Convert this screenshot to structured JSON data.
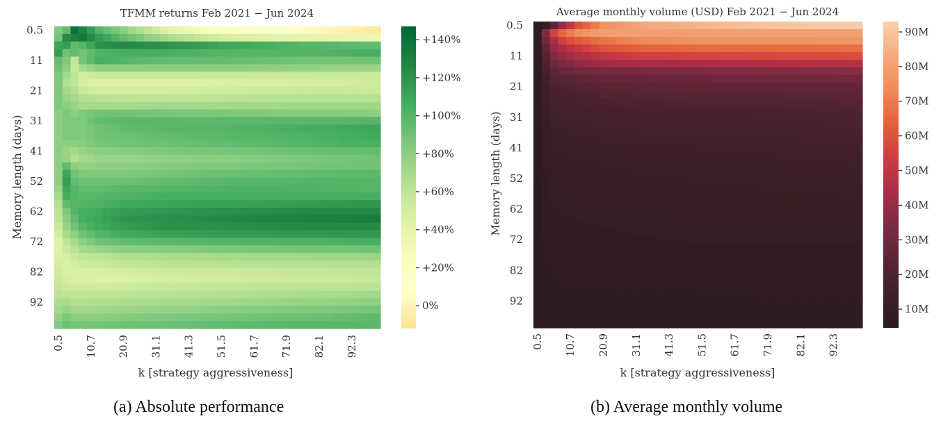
{
  "chart_data": [
    {
      "type": "heatmap",
      "id": "a",
      "title": "TFMM returns Feb 2021 − Jun 2024",
      "xlabel": "k [strategy aggressiveness]",
      "ylabel": "Memory length (days)",
      "x_tick_labels": [
        "0.5",
        "10.7",
        "20.9",
        "31.1",
        "41.3",
        "51.5",
        "61.7",
        "71.9",
        "82.1",
        "92.3"
      ],
      "x_tick_every": 4,
      "y_tick_labels": [
        "0.5",
        "11",
        "21",
        "31",
        "41",
        "52",
        "62",
        "72",
        "82",
        "92"
      ],
      "y_tick_every": 4,
      "n_cols": 40,
      "n_rows": 40,
      "value_unit": "percent return",
      "colormap": "YlGn",
      "colormap_stops": [
        "#fee391",
        "#ffffcc",
        "#f7fcb9",
        "#d9f0a3",
        "#addd8e",
        "#78c679",
        "#41ab5d",
        "#238443",
        "#006837"
      ],
      "vmin": -12,
      "vmax": 147,
      "colorbar_ticks": [
        {
          "value": 140,
          "label": "+140%"
        },
        {
          "value": 120,
          "label": "+120%"
        },
        {
          "value": 100,
          "label": "+100%"
        },
        {
          "value": 80,
          "label": "+80%"
        },
        {
          "value": 60,
          "label": "+60%"
        },
        {
          "value": 40,
          "label": "+40%"
        },
        {
          "value": 20,
          "label": "+20%"
        },
        {
          "value": 0,
          "label": "0%"
        }
      ],
      "anchor_cols": [
        0,
        1,
        2,
        3,
        5,
        8,
        13,
        20,
        30,
        39
      ],
      "rows": [
        [
          85,
          95,
          140,
          130,
          100,
          80,
          45,
          20,
          5,
          -8
        ],
        [
          90,
          125,
          130,
          135,
          115,
          95,
          70,
          50,
          40,
          35
        ],
        [
          110,
          115,
          95,
          100,
          120,
          125,
          120,
          110,
          100,
          95
        ],
        [
          115,
          90,
          95,
          90,
          100,
          105,
          105,
          100,
          100,
          105
        ],
        [
          95,
          85,
          60,
          90,
          105,
          100,
          95,
          95,
          90,
          90
        ],
        [
          90,
          80,
          55,
          70,
          80,
          80,
          80,
          80,
          78,
          75
        ],
        [
          85,
          70,
          60,
          50,
          55,
          55,
          55,
          55,
          55,
          55
        ],
        [
          85,
          65,
          60,
          50,
          45,
          45,
          45,
          48,
          50,
          52
        ],
        [
          85,
          70,
          65,
          55,
          50,
          50,
          50,
          52,
          55,
          55
        ],
        [
          85,
          75,
          70,
          65,
          62,
          60,
          60,
          60,
          62,
          62
        ],
        [
          85,
          80,
          75,
          70,
          70,
          70,
          72,
          72,
          72,
          72
        ],
        [
          80,
          85,
          80,
          85,
          90,
          90,
          88,
          86,
          82,
          80
        ],
        [
          80,
          85,
          85,
          85,
          95,
          98,
          98,
          98,
          98,
          100
        ],
        [
          80,
          85,
          85,
          85,
          90,
          95,
          98,
          100,
          105,
          110
        ],
        [
          80,
          85,
          85,
          85,
          90,
          92,
          95,
          98,
          102,
          108
        ],
        [
          80,
          80,
          80,
          82,
          88,
          90,
          92,
          95,
          100,
          105
        ],
        [
          80,
          75,
          70,
          75,
          80,
          82,
          85,
          88,
          92,
          95
        ],
        [
          80,
          75,
          65,
          70,
          75,
          75,
          78,
          80,
          85,
          90
        ],
        [
          80,
          95,
          80,
          75,
          80,
          80,
          82,
          85,
          88,
          90
        ],
        [
          80,
          110,
          90,
          85,
          85,
          85,
          88,
          92,
          95,
          98
        ],
        [
          80,
          115,
          95,
          90,
          90,
          92,
          95,
          98,
          100,
          100
        ],
        [
          75,
          110,
          100,
          95,
          95,
          98,
          100,
          102,
          102,
          100
        ],
        [
          70,
          105,
          100,
          98,
          100,
          102,
          105,
          105,
          105,
          105
        ],
        [
          65,
          95,
          100,
          100,
          102,
          108,
          110,
          112,
          115,
          118
        ],
        [
          60,
          85,
          100,
          105,
          108,
          115,
          118,
          122,
          125,
          125
        ],
        [
          60,
          80,
          95,
          105,
          110,
          118,
          122,
          125,
          130,
          132
        ],
        [
          55,
          75,
          90,
          100,
          108,
          115,
          120,
          122,
          125,
          125
        ],
        [
          50,
          70,
          80,
          90,
          100,
          108,
          112,
          115,
          118,
          118
        ],
        [
          45,
          60,
          70,
          80,
          90,
          95,
          98,
          100,
          102,
          105
        ],
        [
          45,
          55,
          62,
          70,
          75,
          80,
          82,
          85,
          88,
          90
        ],
        [
          48,
          50,
          55,
          58,
          60,
          65,
          68,
          70,
          72,
          75
        ],
        [
          50,
          48,
          50,
          52,
          55,
          58,
          60,
          62,
          64,
          65
        ],
        [
          52,
          48,
          48,
          48,
          48,
          50,
          52,
          54,
          56,
          58
        ],
        [
          55,
          50,
          48,
          48,
          46,
          47,
          50,
          52,
          54,
          56
        ],
        [
          58,
          55,
          52,
          52,
          52,
          54,
          56,
          58,
          60,
          62
        ],
        [
          62,
          60,
          58,
          58,
          58,
          60,
          62,
          64,
          68,
          72
        ],
        [
          68,
          68,
          65,
          65,
          66,
          68,
          70,
          72,
          76,
          80
        ],
        [
          72,
          75,
          72,
          72,
          72,
          74,
          76,
          80,
          84,
          88
        ],
        [
          78,
          85,
          80,
          80,
          80,
          82,
          85,
          88,
          92,
          96
        ],
        [
          85,
          90,
          88,
          88,
          88,
          90,
          92,
          95,
          98,
          98
        ]
      ]
    },
    {
      "type": "heatmap",
      "id": "b",
      "title": "Average monthly volume (USD) Feb 2021 − Jun 2024",
      "xlabel": "k [strategy aggressiveness]",
      "ylabel": "Memory length (days)",
      "x_tick_labels": [
        "0.5",
        "10.7",
        "20.9",
        "31.1",
        "41.3",
        "51.5",
        "61.7",
        "71.9",
        "82.1",
        "92.3"
      ],
      "x_tick_every": 4,
      "y_tick_labels": [
        "0.5",
        "11",
        "21",
        "31",
        "41",
        "52",
        "62",
        "72",
        "82",
        "92"
      ],
      "y_tick_every": 4,
      "n_cols": 40,
      "n_rows": 40,
      "value_unit": "USD (millions)",
      "colormap": "rocket",
      "colormap_stops": [
        "#2b1c20",
        "#3d1f27",
        "#5a2535",
        "#7d2a42",
        "#a82d48",
        "#cf3c43",
        "#e5603a",
        "#ef8a59",
        "#f4ab7c",
        "#fbd0ad"
      ],
      "vmin": 4.6,
      "vmax": 93,
      "colorbar_ticks": [
        {
          "value": 90,
          "label": "90M"
        },
        {
          "value": 80,
          "label": "80M"
        },
        {
          "value": 70,
          "label": "70M"
        },
        {
          "value": 60,
          "label": "60M"
        },
        {
          "value": 50,
          "label": "50M"
        },
        {
          "value": 40,
          "label": "40M"
        },
        {
          "value": 30,
          "label": "30M"
        },
        {
          "value": 20,
          "label": "20M"
        },
        {
          "value": 10,
          "label": "10M"
        }
      ],
      "anchor_cols": [
        0,
        1,
        2,
        3,
        5,
        8,
        13,
        20,
        30,
        39
      ],
      "rows": [
        [
          5,
          10,
          25,
          40,
          60,
          75,
          82,
          86,
          90,
          92
        ],
        [
          6,
          35,
          55,
          65,
          75,
          80,
          80,
          80,
          80,
          80
        ],
        [
          6,
          30,
          45,
          55,
          62,
          68,
          74,
          76,
          76,
          77
        ],
        [
          6,
          25,
          40,
          45,
          52,
          60,
          64,
          66,
          66,
          67
        ],
        [
          6,
          22,
          35,
          40,
          45,
          50,
          54,
          56,
          57,
          58
        ],
        [
          6,
          20,
          30,
          33,
          38,
          42,
          44,
          45,
          46,
          47
        ],
        [
          6,
          18,
          25,
          27,
          30,
          32,
          33,
          34,
          35,
          36
        ],
        [
          6,
          16,
          22,
          23,
          25,
          27,
          28,
          29,
          30,
          30
        ],
        [
          6,
          15,
          20,
          21,
          22,
          24,
          25,
          26,
          26,
          27
        ],
        [
          6,
          14,
          18,
          19,
          20,
          22,
          23,
          24,
          24,
          25
        ],
        [
          6,
          13,
          17,
          18,
          19,
          20,
          21,
          22,
          22,
          23
        ],
        [
          6,
          12,
          16,
          17,
          17,
          18,
          19,
          20,
          20,
          21
        ],
        [
          6,
          12,
          15,
          16,
          16,
          17,
          18,
          18,
          19,
          20
        ],
        [
          6,
          11,
          14,
          15,
          15,
          16,
          17,
          17,
          18,
          19
        ],
        [
          6,
          11,
          13,
          14,
          15,
          15,
          16,
          16,
          17,
          18
        ],
        [
          6,
          10,
          13,
          13,
          14,
          15,
          15,
          15,
          16,
          17
        ],
        [
          6,
          10,
          12,
          13,
          13,
          14,
          14,
          15,
          15,
          16
        ],
        [
          6,
          10,
          12,
          12,
          13,
          13,
          14,
          14,
          15,
          15
        ],
        [
          6,
          10,
          11,
          12,
          12,
          13,
          13,
          14,
          14,
          15
        ],
        [
          6,
          9,
          11,
          11,
          12,
          12,
          13,
          13,
          14,
          14
        ],
        [
          6,
          9,
          11,
          11,
          11,
          12,
          12,
          13,
          13,
          14
        ],
        [
          5,
          9,
          10,
          11,
          11,
          11,
          12,
          12,
          13,
          13
        ],
        [
          5,
          9,
          10,
          10,
          11,
          11,
          11,
          12,
          12,
          13
        ],
        [
          5,
          8,
          10,
          10,
          10,
          11,
          11,
          11,
          12,
          12
        ],
        [
          5,
          8,
          9,
          10,
          10,
          10,
          11,
          11,
          11,
          12
        ],
        [
          5,
          8,
          9,
          9,
          10,
          10,
          10,
          11,
          11,
          11
        ],
        [
          5,
          8,
          9,
          9,
          9,
          10,
          10,
          10,
          10,
          11
        ],
        [
          5,
          8,
          9,
          9,
          9,
          9,
          10,
          10,
          10,
          10
        ],
        [
          5,
          7,
          8,
          9,
          9,
          9,
          9,
          10,
          10,
          10
        ],
        [
          5,
          7,
          8,
          8,
          9,
          9,
          9,
          9,
          9,
          9
        ],
        [
          5,
          7,
          8,
          8,
          8,
          9,
          9,
          9,
          9,
          9
        ],
        [
          5,
          7,
          8,
          8,
          8,
          8,
          8,
          9,
          9,
          9
        ],
        [
          5,
          7,
          7,
          8,
          8,
          8,
          8,
          8,
          8,
          8
        ],
        [
          5,
          7,
          7,
          8,
          8,
          8,
          8,
          8,
          8,
          8
        ],
        [
          5,
          7,
          7,
          7,
          7,
          8,
          8,
          8,
          8,
          8
        ],
        [
          5,
          6,
          7,
          7,
          7,
          7,
          7,
          7,
          8,
          8
        ],
        [
          5,
          6,
          7,
          7,
          7,
          7,
          7,
          7,
          7,
          7
        ],
        [
          5,
          6,
          7,
          7,
          7,
          7,
          7,
          7,
          7,
          7
        ],
        [
          5,
          6,
          6,
          7,
          7,
          7,
          7,
          7,
          7,
          7
        ],
        [
          5,
          6,
          6,
          6,
          6,
          6,
          7,
          7,
          7,
          7
        ]
      ]
    }
  ],
  "captions": {
    "a": "(a) Absolute performance",
    "b": "(b) Average monthly volume"
  }
}
